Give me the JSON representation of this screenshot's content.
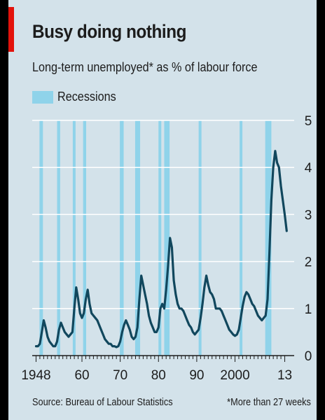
{
  "title": "Busy doing nothing",
  "subtitle": "Long-term unemployed* as % of labour force",
  "source": "Source: Bureau of Labour Statistics",
  "footnote": "*More than 27 weeks",
  "colors": {
    "background": "#d3e2ea",
    "recession": "#8fd3ea",
    "line": "#11475d",
    "accent": "#e3120b",
    "grid": "#ffffff"
  },
  "chart_data": {
    "type": "line",
    "title": "Busy doing nothing",
    "subtitle": "Long-term unemployed* as % of labour force",
    "xlim": [
      1947,
      2014
    ],
    "ylim": [
      0,
      5
    ],
    "y_axis_position": "right",
    "y_ticks": [
      0,
      1,
      2,
      3,
      4,
      5
    ],
    "x_ticks": [
      {
        "value": 1948,
        "label": "1948"
      },
      {
        "value": 1960,
        "label": "60"
      },
      {
        "value": 1970,
        "label": "70"
      },
      {
        "value": 1980,
        "label": "80"
      },
      {
        "value": 1990,
        "label": "90"
      },
      {
        "value": 2000,
        "label": "2000"
      },
      {
        "value": 2013,
        "label": "13"
      }
    ],
    "grid": true,
    "legend": {
      "position": "top-left",
      "entries": [
        "Recessions"
      ]
    },
    "recessions": [
      [
        1948.9,
        1949.8
      ],
      [
        1953.5,
        1954.3
      ],
      [
        1957.6,
        1958.3
      ],
      [
        1960.3,
        1961.1
      ],
      [
        1969.9,
        1970.9
      ],
      [
        1973.9,
        1975.2
      ],
      [
        1980.0,
        1980.5
      ],
      [
        1981.5,
        1982.9
      ],
      [
        1990.5,
        1991.2
      ],
      [
        2001.2,
        2001.9
      ],
      [
        2007.9,
        2009.5
      ]
    ],
    "series": [
      {
        "values": [
          [
            1948.0,
            0.2
          ],
          [
            1948.5,
            0.2
          ],
          [
            1949.0,
            0.25
          ],
          [
            1949.5,
            0.5
          ],
          [
            1950.0,
            0.75
          ],
          [
            1950.5,
            0.6
          ],
          [
            1951.0,
            0.4
          ],
          [
            1951.5,
            0.3
          ],
          [
            1952.0,
            0.25
          ],
          [
            1952.5,
            0.2
          ],
          [
            1953.0,
            0.2
          ],
          [
            1953.5,
            0.3
          ],
          [
            1954.0,
            0.55
          ],
          [
            1954.5,
            0.7
          ],
          [
            1955.0,
            0.6
          ],
          [
            1955.5,
            0.5
          ],
          [
            1956.0,
            0.45
          ],
          [
            1956.5,
            0.4
          ],
          [
            1957.0,
            0.45
          ],
          [
            1957.5,
            0.5
          ],
          [
            1958.0,
            1.0
          ],
          [
            1958.5,
            1.45
          ],
          [
            1959.0,
            1.2
          ],
          [
            1959.5,
            0.9
          ],
          [
            1960.0,
            0.8
          ],
          [
            1960.5,
            0.9
          ],
          [
            1961.0,
            1.2
          ],
          [
            1961.5,
            1.4
          ],
          [
            1962.0,
            1.1
          ],
          [
            1962.5,
            0.9
          ],
          [
            1963.0,
            0.85
          ],
          [
            1963.5,
            0.8
          ],
          [
            1964.0,
            0.75
          ],
          [
            1964.5,
            0.65
          ],
          [
            1965.0,
            0.55
          ],
          [
            1965.5,
            0.45
          ],
          [
            1966.0,
            0.35
          ],
          [
            1966.5,
            0.3
          ],
          [
            1967.0,
            0.25
          ],
          [
            1967.5,
            0.25
          ],
          [
            1968.0,
            0.2
          ],
          [
            1968.5,
            0.2
          ],
          [
            1969.0,
            0.18
          ],
          [
            1969.5,
            0.2
          ],
          [
            1970.0,
            0.3
          ],
          [
            1970.5,
            0.5
          ],
          [
            1971.0,
            0.65
          ],
          [
            1971.5,
            0.75
          ],
          [
            1972.0,
            0.65
          ],
          [
            1972.5,
            0.55
          ],
          [
            1973.0,
            0.4
          ],
          [
            1973.5,
            0.35
          ],
          [
            1974.0,
            0.4
          ],
          [
            1974.5,
            0.6
          ],
          [
            1975.0,
            1.2
          ],
          [
            1975.5,
            1.7
          ],
          [
            1976.0,
            1.5
          ],
          [
            1976.5,
            1.3
          ],
          [
            1977.0,
            1.1
          ],
          [
            1977.5,
            0.85
          ],
          [
            1978.0,
            0.7
          ],
          [
            1978.5,
            0.6
          ],
          [
            1979.0,
            0.5
          ],
          [
            1979.5,
            0.5
          ],
          [
            1980.0,
            0.6
          ],
          [
            1980.5,
            1.0
          ],
          [
            1981.0,
            1.1
          ],
          [
            1981.5,
            1.0
          ],
          [
            1982.0,
            1.4
          ],
          [
            1982.5,
            1.9
          ],
          [
            1983.0,
            2.5
          ],
          [
            1983.5,
            2.3
          ],
          [
            1984.0,
            1.6
          ],
          [
            1984.5,
            1.3
          ],
          [
            1985.0,
            1.1
          ],
          [
            1985.5,
            1.0
          ],
          [
            1986.0,
            1.0
          ],
          [
            1986.5,
            0.95
          ],
          [
            1987.0,
            0.85
          ],
          [
            1987.5,
            0.75
          ],
          [
            1988.0,
            0.65
          ],
          [
            1988.5,
            0.6
          ],
          [
            1989.0,
            0.5
          ],
          [
            1989.5,
            0.45
          ],
          [
            1990.0,
            0.5
          ],
          [
            1990.5,
            0.55
          ],
          [
            1991.0,
            0.8
          ],
          [
            1991.5,
            1.1
          ],
          [
            1992.0,
            1.45
          ],
          [
            1992.5,
            1.7
          ],
          [
            1993.0,
            1.5
          ],
          [
            1993.5,
            1.35
          ],
          [
            1994.0,
            1.3
          ],
          [
            1994.5,
            1.2
          ],
          [
            1995.0,
            1.0
          ],
          [
            1995.5,
            1.0
          ],
          [
            1996.0,
            1.0
          ],
          [
            1996.5,
            0.95
          ],
          [
            1997.0,
            0.85
          ],
          [
            1997.5,
            0.75
          ],
          [
            1998.0,
            0.65
          ],
          [
            1998.5,
            0.55
          ],
          [
            1999.0,
            0.5
          ],
          [
            1999.5,
            0.45
          ],
          [
            2000.0,
            0.42
          ],
          [
            2000.5,
            0.45
          ],
          [
            2001.0,
            0.55
          ],
          [
            2001.5,
            0.8
          ],
          [
            2002.0,
            1.05
          ],
          [
            2002.5,
            1.25
          ],
          [
            2003.0,
            1.35
          ],
          [
            2003.5,
            1.3
          ],
          [
            2004.0,
            1.2
          ],
          [
            2004.5,
            1.1
          ],
          [
            2005.0,
            1.05
          ],
          [
            2005.5,
            0.95
          ],
          [
            2006.0,
            0.85
          ],
          [
            2006.5,
            0.8
          ],
          [
            2007.0,
            0.75
          ],
          [
            2007.5,
            0.8
          ],
          [
            2008.0,
            0.85
          ],
          [
            2008.5,
            1.2
          ],
          [
            2009.0,
            2.2
          ],
          [
            2009.5,
            3.3
          ],
          [
            2010.0,
            4.0
          ],
          [
            2010.5,
            4.35
          ],
          [
            2011.0,
            4.1
          ],
          [
            2011.5,
            4.0
          ],
          [
            2012.0,
            3.6
          ],
          [
            2012.5,
            3.3
          ],
          [
            2013.0,
            3.0
          ],
          [
            2013.5,
            2.65
          ]
        ]
      }
    ]
  }
}
